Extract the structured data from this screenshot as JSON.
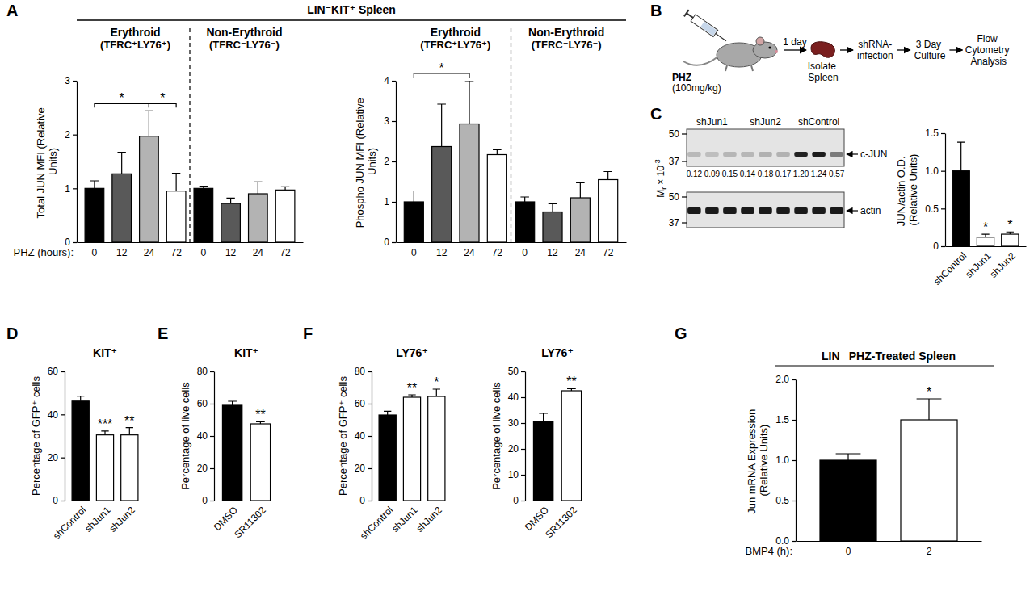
{
  "panel_letters": [
    "A",
    "B",
    "C",
    "D",
    "E",
    "F",
    "G"
  ],
  "header": "LIN⁻KIT⁺ Spleen",
  "diagram": {
    "drug": "PHZ",
    "dose": "(100mg/kg)",
    "interval": "1 day",
    "organ": "Isolate Spleen",
    "steps": [
      "shRNA-infection",
      "3 Day Culture",
      "Flow Cytometry Analysis"
    ]
  },
  "blot": {
    "mr_symbol": "M",
    "mr_subscript": "r",
    "mr_scale": "× 10",
    "mr_exponent": "-3",
    "markers": [
      50,
      37
    ],
    "lane_groups": [
      "shJun1",
      "shJun2",
      "shControl"
    ],
    "lane_values": [
      0.12,
      0.09,
      0.15,
      0.14,
      0.18,
      0.17,
      1.2,
      1.24,
      0.57
    ],
    "lane_value_labels": [
      "0.12",
      "0.09",
      "0.15",
      "0.14",
      "0.18",
      "0.17",
      "1.20",
      "1.24",
      "0.57"
    ],
    "bands": [
      "c-JUN",
      "actin"
    ]
  },
  "chart_data": [
    {
      "type": "bar",
      "ylabel": "Total JUN MFI (Relative Units)",
      "xlabel": "PHZ (hours):",
      "categories": [
        "0",
        "12",
        "24",
        "72",
        "0",
        "12",
        "24",
        "72"
      ],
      "values": [
        1.0,
        1.27,
        1.97,
        0.95,
        1.0,
        0.72,
        0.9,
        0.97
      ],
      "errors": [
        0.14,
        0.4,
        0.47,
        0.33,
        0.04,
        0.1,
        0.22,
        0.06
      ],
      "colors": [
        "#000000",
        "#595959",
        "#b3b3b3",
        "#ffffff",
        "#000000",
        "#595959",
        "#b3b3b3",
        "#ffffff"
      ],
      "ylim": [
        0,
        3
      ],
      "yticks": [
        0,
        1,
        2,
        3
      ],
      "groups": [
        {
          "label": "Erythroid",
          "sublabel": "(TFRC⁺LY76⁺)",
          "span": [
            0,
            3
          ]
        },
        {
          "label": "Non-Erythroid",
          "sublabel": "(TFRC⁻LY76⁻)",
          "span": [
            4,
            7
          ]
        }
      ],
      "significance": [
        {
          "label": "*",
          "bars": [
            0,
            2
          ]
        },
        {
          "label": "*",
          "bars": [
            2,
            3
          ]
        }
      ]
    },
    {
      "type": "bar",
      "ylabel": "Phospho JUN MFI (Relative Units)",
      "categories": [
        "0",
        "12",
        "24",
        "72",
        "0",
        "12",
        "24",
        "72"
      ],
      "values": [
        1.0,
        2.37,
        2.93,
        2.17,
        1.0,
        0.75,
        1.1,
        1.55
      ],
      "errors": [
        0.27,
        1.05,
        1.07,
        0.12,
        0.12,
        0.2,
        0.37,
        0.2
      ],
      "colors": [
        "#000000",
        "#595959",
        "#b3b3b3",
        "#ffffff",
        "#000000",
        "#595959",
        "#b3b3b3",
        "#ffffff"
      ],
      "ylim": [
        0,
        4
      ],
      "yticks": [
        0,
        1,
        2,
        3,
        4
      ],
      "groups": [
        {
          "label": "Erythroid",
          "sublabel": "(TFRC⁺LY76⁺)",
          "span": [
            0,
            3
          ]
        },
        {
          "label": "Non-Erythroid",
          "sublabel": "(TFRC⁻LY76⁻)",
          "span": [
            4,
            7
          ]
        }
      ],
      "significance": [
        {
          "label": "*",
          "bars": [
            0,
            2
          ]
        }
      ]
    },
    {
      "type": "bar",
      "ylabel": "JUN/actin O.D. (Relative Units)",
      "categories": [
        "shControl",
        "shJun1",
        "shJun2"
      ],
      "values": [
        1.0,
        0.12,
        0.16
      ],
      "errors": [
        0.38,
        0.04,
        0.03
      ],
      "colors": [
        "#000000",
        "#ffffff",
        "#ffffff"
      ],
      "ylim": [
        0,
        1.5
      ],
      "yticks": [
        0,
        0.5,
        {
          "value": 1,
          "label": "1.0"
        },
        1.5
      ],
      "significance": [
        {
          "label": "*",
          "bars": [
            1
          ]
        },
        {
          "label": "*",
          "bars": [
            2
          ]
        }
      ]
    },
    {
      "type": "bar",
      "title": "KIT⁺",
      "ylabel": "Percentage of GFP⁺ cells",
      "categories": [
        "shControl",
        "shJun1",
        "shJun2"
      ],
      "values": [
        46.2,
        30.5,
        30.5
      ],
      "errors": [
        2.3,
        1.8,
        3.4
      ],
      "colors": [
        "#000000",
        "#ffffff",
        "#ffffff"
      ],
      "ylim": [
        0,
        60
      ],
      "yticks": [
        0,
        20,
        40,
        60
      ],
      "significance": [
        {
          "label": "***",
          "bars": [
            1
          ]
        },
        {
          "label": "**",
          "bars": [
            2
          ]
        }
      ]
    },
    {
      "type": "bar",
      "title": "KIT⁺",
      "ylabel": "Percentage of live cells",
      "categories": [
        "DMSO",
        "SR11302"
      ],
      "values": [
        59,
        47.5
      ],
      "errors": [
        2.5,
        1.3
      ],
      "colors": [
        "#000000",
        "#ffffff"
      ],
      "ylim": [
        0,
        80
      ],
      "yticks": [
        0,
        20,
        40,
        60,
        80
      ],
      "significance": [
        {
          "label": "**",
          "bars": [
            1
          ]
        }
      ]
    },
    {
      "type": "bar",
      "title": "LY76⁺",
      "ylabel": "Percentage of GFP⁺ cells",
      "categories": [
        "shControl",
        "shJun1",
        "shJun2"
      ],
      "values": [
        53,
        64,
        64.5
      ],
      "errors": [
        2.3,
        1.5,
        4.5
      ],
      "colors": [
        "#000000",
        "#ffffff",
        "#ffffff"
      ],
      "ylim": [
        0,
        80
      ],
      "yticks": [
        0,
        20,
        40,
        60,
        80
      ],
      "significance": [
        {
          "label": "**",
          "bars": [
            1
          ]
        },
        {
          "label": "*",
          "bars": [
            2
          ]
        }
      ]
    },
    {
      "type": "bar",
      "title": "LY76⁺",
      "ylabel": "Percentage of live cells",
      "categories": [
        "DMSO",
        "SR11302"
      ],
      "values": [
        30.5,
        42.5
      ],
      "errors": [
        3.3,
        0.8
      ],
      "colors": [
        "#000000",
        "#ffffff"
      ],
      "ylim": [
        0,
        50
      ],
      "yticks": [
        0,
        10,
        20,
        30,
        40,
        50
      ],
      "significance": [
        {
          "label": "**",
          "bars": [
            1
          ]
        }
      ]
    },
    {
      "type": "bar",
      "title": "LIN⁻ PHZ-Treated Spleen",
      "ylabel": "Jun mRNA Expression (Relative Units)",
      "xlabel": "BMP4 (h):",
      "categories": [
        "0",
        "2"
      ],
      "values": [
        1.0,
        1.5
      ],
      "errors": [
        0.08,
        0.26
      ],
      "colors": [
        "#000000",
        "#ffffff"
      ],
      "ylim": [
        0,
        2
      ],
      "yticks": [
        {
          "value": 0,
          "label": "0.0"
        },
        0.5,
        {
          "value": 1,
          "label": "1.0"
        },
        1.5,
        {
          "value": 2,
          "label": "2.0"
        }
      ],
      "significance": [
        {
          "label": "*",
          "bars": [
            1
          ]
        }
      ]
    }
  ]
}
